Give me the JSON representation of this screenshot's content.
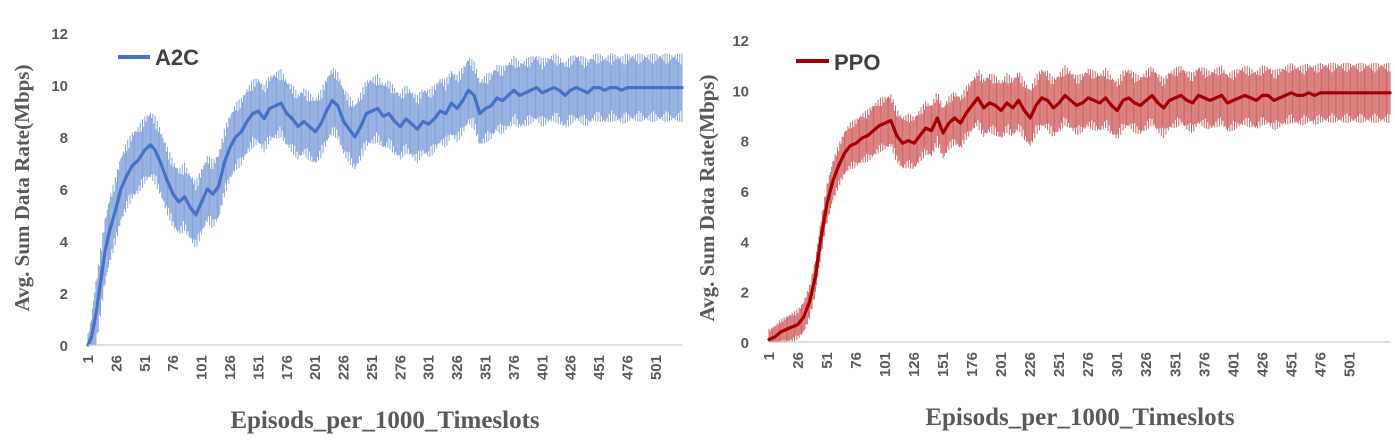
{
  "chart_data": [
    {
      "type": "line",
      "xlabel": "Episods_per_1000_Timeslots",
      "ylabel": "Avg. Sum Data Rate(Mbps)",
      "ylim": [
        0,
        12
      ],
      "yticks": [
        0,
        2,
        4,
        6,
        8,
        10,
        12
      ],
      "xlim": [
        1,
        524
      ],
      "xticks": [
        1,
        26,
        51,
        76,
        101,
        126,
        151,
        176,
        201,
        226,
        251,
        276,
        301,
        326,
        351,
        376,
        401,
        426,
        451,
        476,
        501
      ],
      "grid": false,
      "legend": "top-left",
      "error_bars": true,
      "series": [
        {
          "name": "A2C",
          "color": "#4472c4",
          "x": [
            1,
            4,
            8,
            12,
            16,
            20,
            26,
            30,
            35,
            40,
            45,
            51,
            56,
            60,
            65,
            70,
            76,
            81,
            86,
            91,
            96,
            101,
            106,
            111,
            116,
            121,
            126,
            131,
            136,
            141,
            146,
            151,
            156,
            161,
            166,
            171,
            176,
            181,
            186,
            191,
            196,
            201,
            206,
            211,
            216,
            221,
            226,
            231,
            236,
            241,
            246,
            251,
            256,
            261,
            266,
            271,
            276,
            281,
            286,
            291,
            296,
            301,
            306,
            311,
            316,
            321,
            326,
            331,
            336,
            341,
            346,
            351,
            356,
            361,
            366,
            371,
            376,
            381,
            386,
            391,
            396,
            401,
            406,
            411,
            416,
            421,
            426,
            431,
            436,
            441,
            446,
            451,
            456,
            461,
            466,
            471,
            476,
            481,
            486,
            491,
            496,
            501,
            506,
            511,
            516,
            521,
            524
          ],
          "values": [
            0.0,
            0.3,
            1.2,
            2.4,
            3.6,
            4.4,
            5.3,
            6.0,
            6.5,
            6.9,
            7.1,
            7.5,
            7.7,
            7.5,
            7.0,
            6.4,
            5.8,
            5.5,
            5.7,
            5.3,
            5.0,
            5.5,
            6.0,
            5.8,
            6.1,
            7.0,
            7.6,
            8.0,
            8.2,
            8.6,
            8.9,
            9.0,
            8.7,
            9.1,
            9.2,
            9.3,
            8.9,
            8.7,
            8.4,
            8.6,
            8.4,
            8.2,
            8.5,
            9.0,
            9.4,
            9.2,
            8.6,
            8.3,
            8.0,
            8.4,
            8.9,
            9.0,
            9.1,
            8.8,
            8.9,
            8.6,
            8.4,
            8.7,
            8.5,
            8.3,
            8.6,
            8.5,
            8.7,
            9.0,
            8.9,
            9.3,
            9.1,
            9.4,
            9.8,
            9.6,
            8.9,
            9.1,
            9.2,
            9.5,
            9.4,
            9.6,
            9.8,
            9.6,
            9.7,
            9.8,
            9.9,
            9.7,
            9.8,
            9.9,
            9.8,
            9.6,
            9.8,
            9.9,
            9.8,
            9.7,
            9.9,
            9.9,
            9.8,
            9.9,
            9.9,
            9.8,
            9.9,
            9.9,
            9.9,
            9.9,
            9.9,
            9.9,
            9.9,
            9.9,
            9.9,
            9.9,
            9.9
          ]
        }
      ]
    },
    {
      "type": "line",
      "xlabel": "Episods_per_1000_Timeslots",
      "ylabel": "Avg. Sum Data Rate(Mbps)",
      "ylim": [
        0,
        12
      ],
      "yticks": [
        0,
        2,
        4,
        6,
        8,
        10,
        12
      ],
      "xlim": [
        1,
        536
      ],
      "xticks": [
        1,
        26,
        51,
        76,
        101,
        126,
        151,
        176,
        201,
        226,
        251,
        276,
        301,
        326,
        351,
        376,
        401,
        426,
        451,
        476,
        501
      ],
      "grid": false,
      "legend": "top-left",
      "error_bars": true,
      "series": [
        {
          "name": "PPO",
          "color": "#a50000",
          "x": [
            1,
            6,
            11,
            16,
            21,
            26,
            31,
            36,
            41,
            46,
            51,
            56,
            61,
            66,
            71,
            76,
            81,
            86,
            91,
            96,
            101,
            106,
            111,
            116,
            121,
            126,
            131,
            136,
            141,
            146,
            151,
            156,
            161,
            166,
            171,
            176,
            181,
            186,
            191,
            196,
            201,
            206,
            211,
            216,
            221,
            226,
            231,
            236,
            241,
            246,
            251,
            256,
            261,
            266,
            271,
            276,
            281,
            286,
            291,
            296,
            301,
            306,
            311,
            316,
            321,
            326,
            331,
            336,
            341,
            346,
            351,
            356,
            361,
            366,
            371,
            376,
            381,
            386,
            391,
            396,
            401,
            406,
            411,
            416,
            421,
            426,
            431,
            436,
            441,
            446,
            451,
            456,
            461,
            466,
            471,
            476,
            481,
            486,
            491,
            496,
            501,
            506,
            511,
            516,
            521,
            526,
            531,
            536
          ],
          "values": [
            0.1,
            0.2,
            0.4,
            0.5,
            0.6,
            0.7,
            1.0,
            1.6,
            2.6,
            4.2,
            5.5,
            6.4,
            7.0,
            7.5,
            7.8,
            7.9,
            8.1,
            8.2,
            8.4,
            8.6,
            8.7,
            8.8,
            8.2,
            7.9,
            8.0,
            7.9,
            8.2,
            8.5,
            8.4,
            8.9,
            8.3,
            8.7,
            8.9,
            8.7,
            9.1,
            9.4,
            9.7,
            9.3,
            9.5,
            9.4,
            9.2,
            9.5,
            9.3,
            9.6,
            9.2,
            8.9,
            9.4,
            9.7,
            9.6,
            9.3,
            9.5,
            9.8,
            9.6,
            9.4,
            9.5,
            9.7,
            9.6,
            9.5,
            9.7,
            9.4,
            9.2,
            9.6,
            9.7,
            9.5,
            9.4,
            9.6,
            9.8,
            9.5,
            9.3,
            9.6,
            9.7,
            9.8,
            9.6,
            9.5,
            9.8,
            9.7,
            9.6,
            9.7,
            9.8,
            9.5,
            9.6,
            9.7,
            9.8,
            9.7,
            9.6,
            9.8,
            9.8,
            9.6,
            9.7,
            9.8,
            9.9,
            9.8,
            9.8,
            9.9,
            9.8,
            9.9,
            9.9,
            9.9,
            9.9,
            9.9,
            9.9,
            9.9,
            9.9,
            9.9,
            9.9,
            9.9,
            9.9,
            9.9
          ]
        }
      ]
    }
  ]
}
